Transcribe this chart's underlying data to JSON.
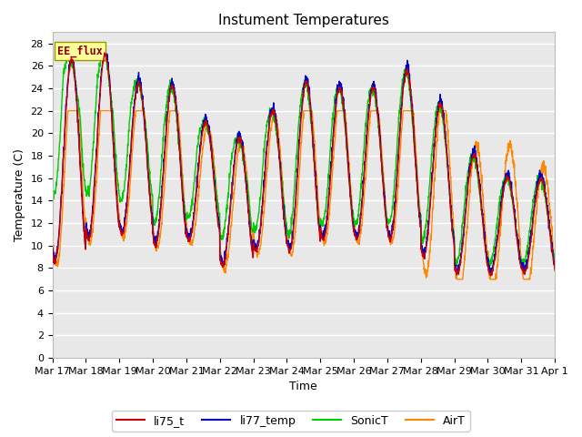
{
  "title": "Instument Temperatures",
  "xlabel": "Time",
  "ylabel": "Temperature (C)",
  "ylim": [
    0,
    29
  ],
  "yticks": [
    0,
    2,
    4,
    6,
    8,
    10,
    12,
    14,
    16,
    18,
    20,
    22,
    24,
    26,
    28
  ],
  "date_labels": [
    "Mar 17",
    "Mar 18",
    "Mar 19",
    "Mar 20",
    "Mar 21",
    "Mar 22",
    "Mar 23",
    "Mar 24",
    "Mar 25",
    "Mar 26",
    "Mar 27",
    "Mar 28",
    "Mar 29",
    "Mar 30",
    "Mar 31",
    "Apr 1"
  ],
  "colors": {
    "li75_t": "#cc0000",
    "li77_temp": "#0000cc",
    "SonicT": "#00cc00",
    "AirT": "#ff8800"
  },
  "legend_labels": [
    "li75_t",
    "li77_temp",
    "SonicT",
    "AirT"
  ],
  "annotation_text": "EE_flux",
  "annotation_color": "#8b0000",
  "annotation_bg": "#ffff99",
  "fig_bg": "#ffffff",
  "plot_bg": "#e8e8e8",
  "grid_color": "#ffffff",
  "title_fontsize": 11,
  "label_fontsize": 9,
  "tick_fontsize": 8
}
